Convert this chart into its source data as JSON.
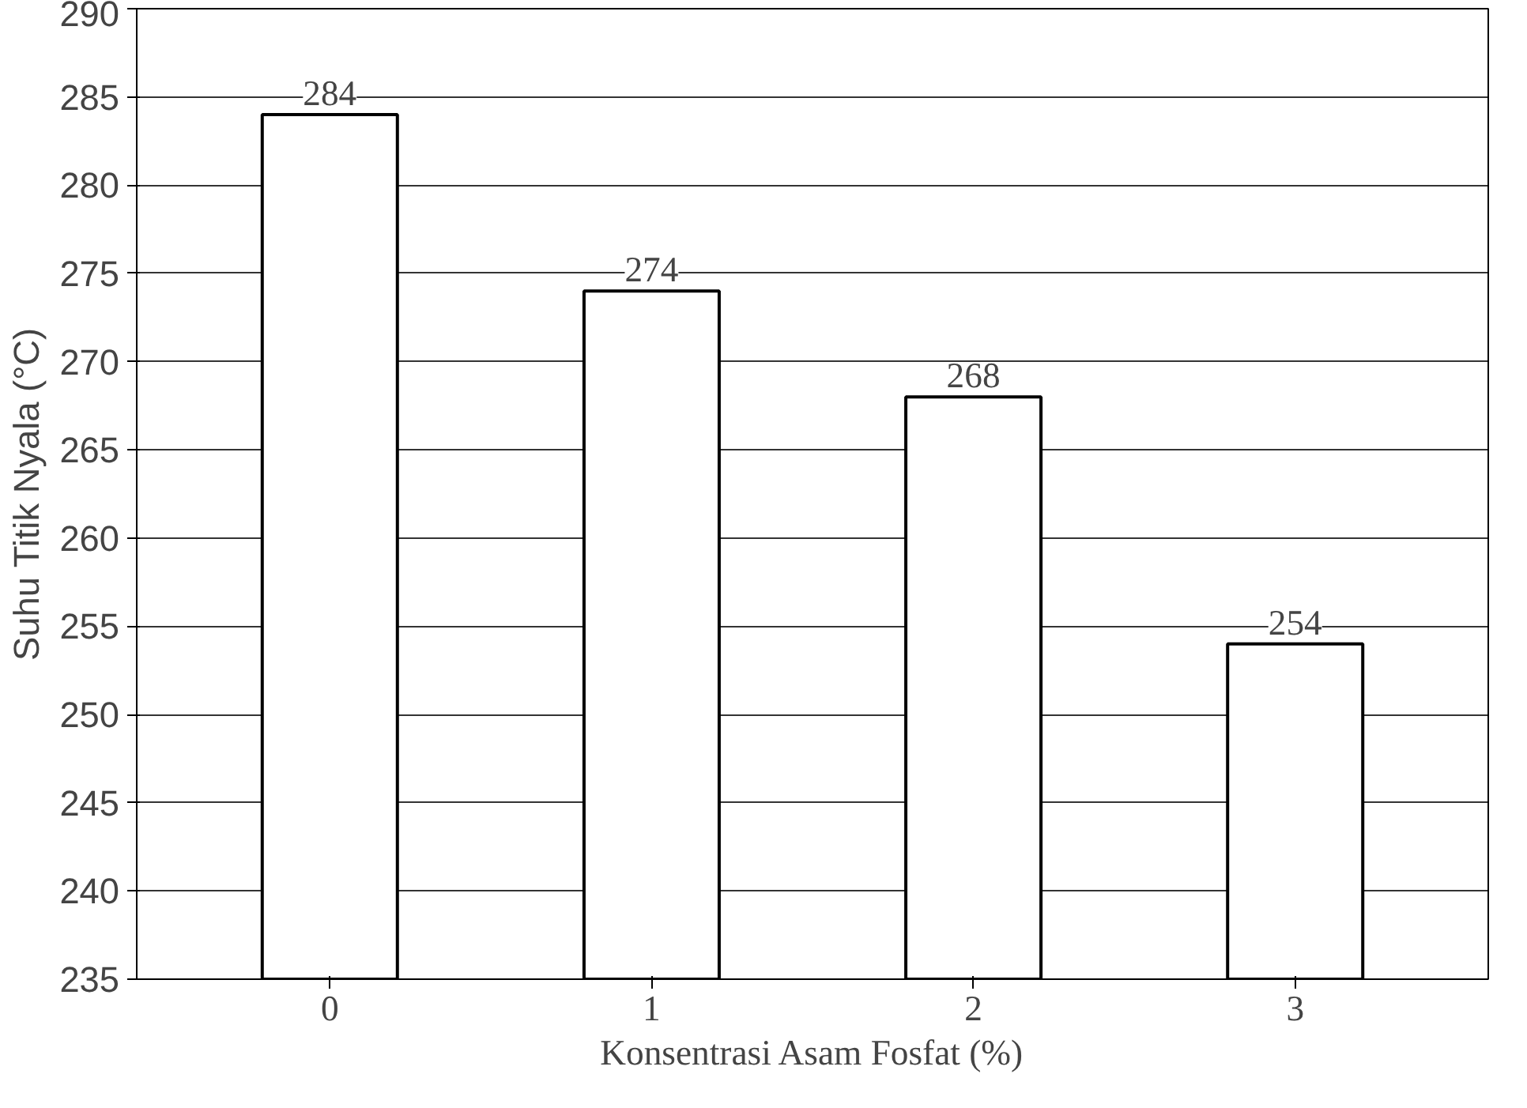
{
  "chart_data": {
    "type": "bar",
    "xlabel": "Konsentrasi Asam Fosfat (%)",
    "ylabel": "Suhu Titik Nyala (°C)",
    "categories": [
      "0",
      "1",
      "2",
      "3"
    ],
    "values": [
      284,
      274,
      268,
      254
    ],
    "color": "#ffffff",
    "ylim": [
      235,
      290
    ],
    "yticks": [
      235,
      240,
      245,
      250,
      255,
      260,
      265,
      270,
      275,
      280,
      285,
      290
    ],
    "grid": "y",
    "data_labels": true
  }
}
